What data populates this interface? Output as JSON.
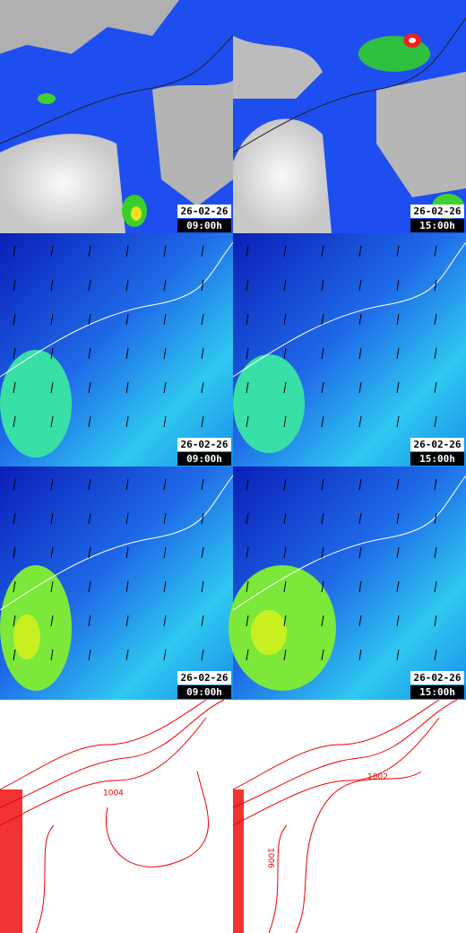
{
  "panels": [
    {
      "date": "26-02-26",
      "time": "09:00h"
    },
    {
      "date": "26-02-26",
      "time": "15:00h"
    },
    {
      "date": "26-02-26",
      "time": "09:00h"
    },
    {
      "date": "26-02-26",
      "time": "15:00h"
    },
    {
      "date": "26-02-26",
      "time": "09:00h"
    },
    {
      "date": "26-02-26",
      "time": "15:00h"
    }
  ],
  "isobar_labels": {
    "left": [
      "1004"
    ],
    "right": [
      "1002",
      "1006"
    ]
  }
}
